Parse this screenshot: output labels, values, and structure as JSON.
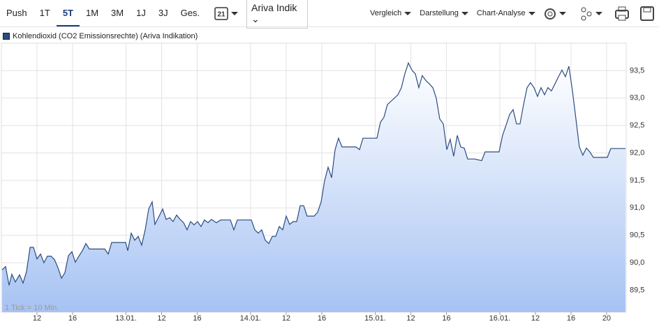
{
  "toolbar": {
    "periods": [
      "Push",
      "1T",
      "5T",
      "1M",
      "3M",
      "1J",
      "3J",
      "Ges."
    ],
    "calendar_day": "21",
    "source": "Ariva Indik",
    "menus": [
      "Vergleich",
      "Darstellung",
      "Chart-Analyse"
    ]
  },
  "chart_data": {
    "type": "line",
    "note": "1 Tick = 10 Min.",
    "x": [
      0.08,
      0.47,
      0.86,
      1.18,
      1.57,
      2.04,
      2.43,
      2.82,
      3.22,
      3.61,
      4.0,
      4.39,
      4.78,
      5.18,
      5.57,
      5.96,
      6.35,
      6.75,
      7.14,
      7.53,
      7.92,
      8.31,
      8.71,
      9.1,
      9.49,
      9.88,
      10.82,
      11.61,
      12.0,
      12.39,
      13.18,
      13.96,
      14.2,
      14.59,
      14.98,
      15.37,
      15.76,
      16.16,
      16.55,
      16.94,
      17.25,
      17.73,
      18.12,
      18.51,
      18.9,
      19.29,
      19.69,
      20.08,
      20.47,
      20.86,
      21.25,
      21.65,
      22.04,
      22.43,
      22.82,
      23.22,
      23.61,
      24.16,
      24.63,
      25.33,
      25.73,
      26.12,
      26.51,
      27.29,
      28.08,
      28.47,
      28.86,
      29.25,
      29.65,
      30.04,
      30.43,
      30.82,
      31.22,
      31.61,
      32.0,
      32.39,
      32.78,
      33.18,
      33.57,
      33.96,
      34.35,
      34.75,
      35.14,
      35.53,
      35.92,
      36.31,
      36.71,
      37.1,
      37.49,
      37.88,
      38.27,
      39.06,
      39.84,
      40.24,
      40.63,
      41.41,
      42.2,
      42.59,
      42.98,
      43.37,
      43.76,
      44.16,
      44.55,
      44.94,
      45.33,
      45.73,
      46.12,
      46.51,
      46.9,
      47.29,
      47.69,
      48.08,
      48.47,
      48.86,
      49.25,
      49.65,
      50.04,
      50.43,
      50.82,
      51.22,
      51.61,
      52.0,
      52.39,
      53.18,
      53.96,
      54.35,
      55.14,
      55.92,
      56.31,
      56.71,
      57.1,
      57.49,
      57.88,
      58.27,
      58.67,
      59.06,
      59.45,
      59.84,
      60.24,
      60.63,
      61.02,
      61.41,
      61.8,
      62.2,
      62.59,
      62.98,
      63.37,
      63.76,
      64.16,
      64.55,
      64.94,
      65.33,
      65.73,
      66.12,
      66.51,
      67.29,
      68.08,
      68.47,
      69.25,
      70.12
    ],
    "series": [
      {
        "name": "Kohlendioxid (CO2 Emissionsrechte) (Ariva Indikation)",
        "color": "#2b4c80",
        "values": [
          89.87,
          89.93,
          89.59,
          89.79,
          89.65,
          89.78,
          89.63,
          89.84,
          90.28,
          90.28,
          90.07,
          90.16,
          90.0,
          90.12,
          90.12,
          90.06,
          89.91,
          89.72,
          89.82,
          90.13,
          90.2,
          90.01,
          90.12,
          90.22,
          90.35,
          90.25,
          90.25,
          90.25,
          90.16,
          90.37,
          90.37,
          90.37,
          90.22,
          90.54,
          90.41,
          90.48,
          90.32,
          90.6,
          90.98,
          91.11,
          90.7,
          90.85,
          90.98,
          90.79,
          90.82,
          90.75,
          90.87,
          90.79,
          90.73,
          90.6,
          90.75,
          90.69,
          90.75,
          90.66,
          90.78,
          90.73,
          90.79,
          90.73,
          90.78,
          90.78,
          90.78,
          90.6,
          90.78,
          90.78,
          90.78,
          90.6,
          90.54,
          90.6,
          90.41,
          90.35,
          90.48,
          90.48,
          90.66,
          90.6,
          90.85,
          90.7,
          90.75,
          90.75,
          91.04,
          91.04,
          90.85,
          90.85,
          90.85,
          90.92,
          91.11,
          91.49,
          91.74,
          91.55,
          92.06,
          92.27,
          92.11,
          92.11,
          92.11,
          92.06,
          92.27,
          92.27,
          92.27,
          92.56,
          92.65,
          92.88,
          92.94,
          93.0,
          93.06,
          93.19,
          93.44,
          93.64,
          93.51,
          93.44,
          93.19,
          93.41,
          93.32,
          93.26,
          93.19,
          93.0,
          92.62,
          92.53,
          92.06,
          92.25,
          91.94,
          92.32,
          92.11,
          92.09,
          91.89,
          91.89,
          91.86,
          92.02,
          92.02,
          92.02,
          92.32,
          92.51,
          92.7,
          92.79,
          92.53,
          92.53,
          92.88,
          93.19,
          93.28,
          93.19,
          93.03,
          93.19,
          93.06,
          93.19,
          93.13,
          93.26,
          93.39,
          93.51,
          93.39,
          93.58,
          93.13,
          92.62,
          92.11,
          91.96,
          92.09,
          92.02,
          91.92,
          91.92,
          91.92,
          92.08,
          92.08,
          92.08
        ]
      }
    ],
    "xlim": [
      0,
      70.2
    ],
    "xticks": [
      {
        "value": 4,
        "label": "12"
      },
      {
        "value": 8,
        "label": "16"
      },
      {
        "value": 14,
        "label": "13.01."
      },
      {
        "value": 18,
        "label": "12"
      },
      {
        "value": 22,
        "label": "16"
      },
      {
        "value": 28,
        "label": "14.01."
      },
      {
        "value": 32,
        "label": "12"
      },
      {
        "value": 36,
        "label": "16"
      },
      {
        "value": 42,
        "label": "15.01."
      },
      {
        "value": 46,
        "label": "12"
      },
      {
        "value": 50,
        "label": "16"
      },
      {
        "value": 56,
        "label": "16.01."
      },
      {
        "value": 60,
        "label": "12"
      },
      {
        "value": 64,
        "label": "16"
      },
      {
        "value": 68,
        "label": "20"
      }
    ],
    "ylim": [
      89.1,
      94.0
    ],
    "yticks": [
      {
        "value": 89.5,
        "label": "89,5"
      },
      {
        "value": 90.0,
        "label": "90,0"
      },
      {
        "value": 90.5,
        "label": "90,5"
      },
      {
        "value": 91.0,
        "label": "91,0"
      },
      {
        "value": 91.5,
        "label": "91,5"
      },
      {
        "value": 92.0,
        "label": "92,0"
      },
      {
        "value": 92.5,
        "label": "92,5"
      },
      {
        "value": 93.0,
        "label": "93,0"
      },
      {
        "value": 93.5,
        "label": "93,5"
      }
    ],
    "grid": true
  }
}
